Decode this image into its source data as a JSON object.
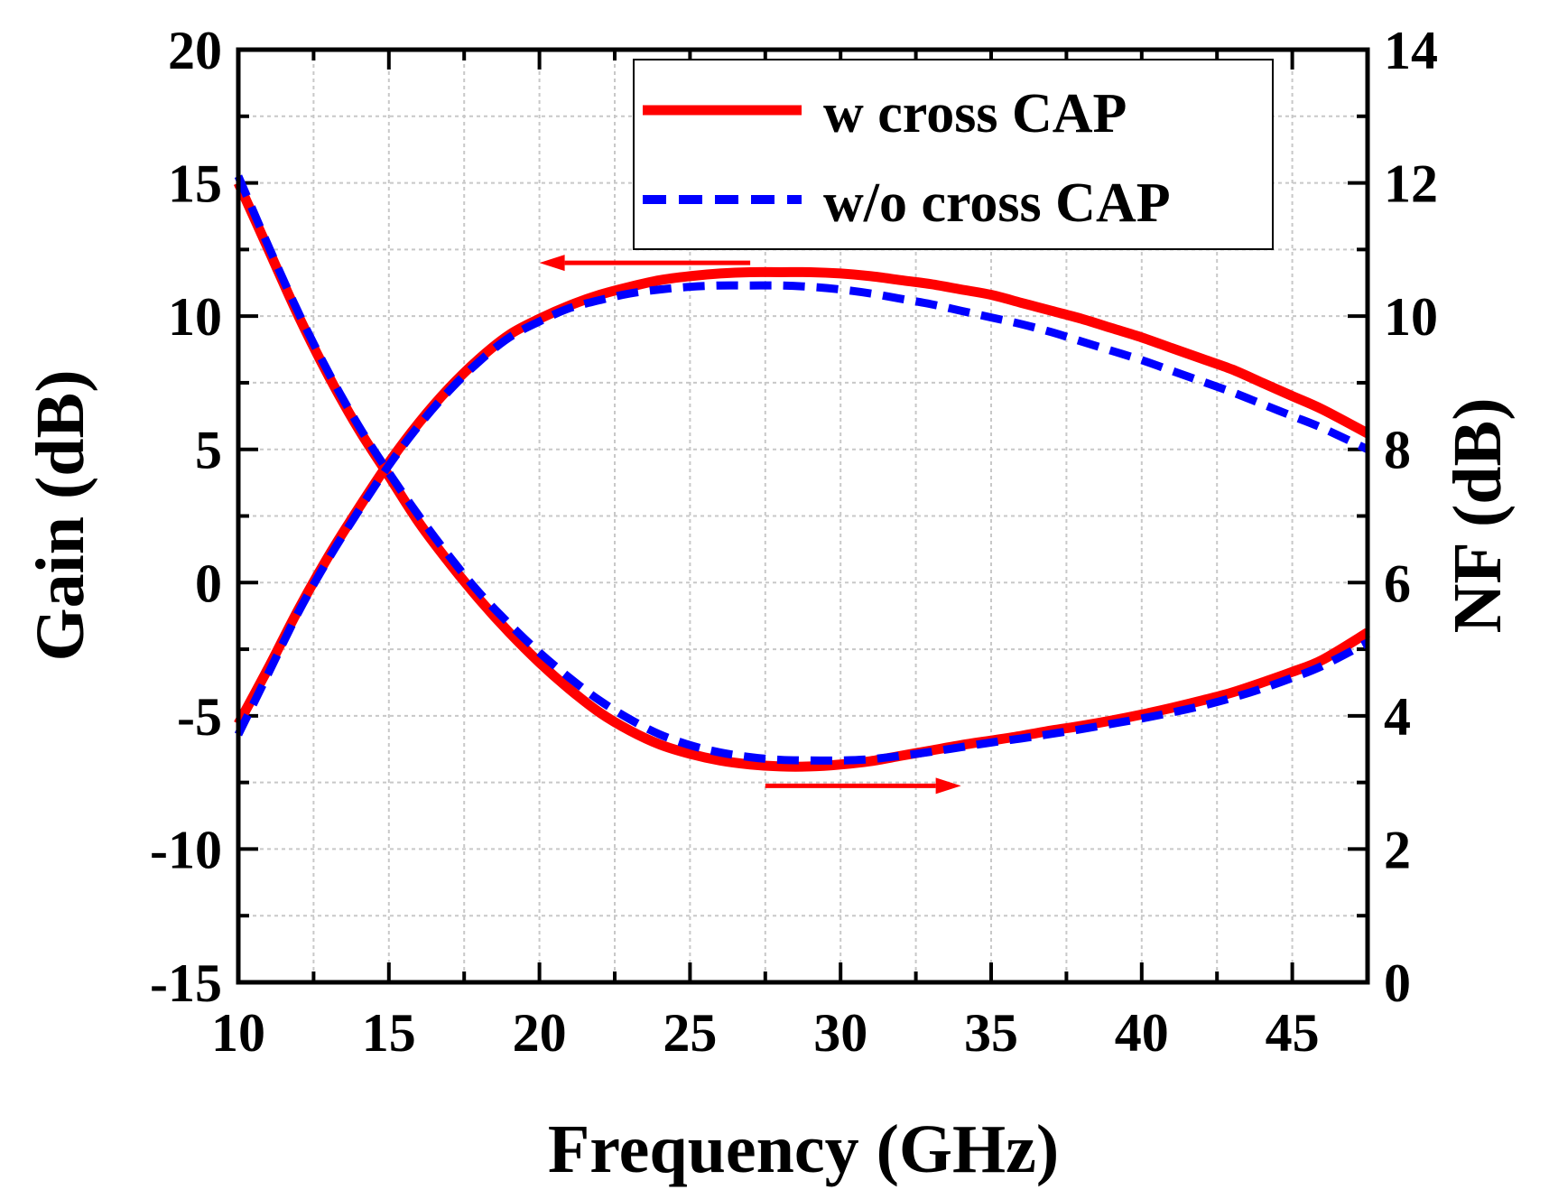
{
  "chart_data": {
    "type": "line",
    "title": "",
    "xlabel": "Frequency (GHz)",
    "ylabel": "Gain (dB)",
    "y2label": "NF (dB)",
    "xlim": [
      10,
      47.5
    ],
    "ylim": [
      -15,
      20
    ],
    "y2lim": [
      0,
      14
    ],
    "xticks": [
      10,
      15,
      20,
      25,
      30,
      35,
      40,
      45
    ],
    "xtick_labels": [
      "10",
      "15",
      "20",
      "25",
      "30",
      "35",
      "40",
      "45"
    ],
    "yticks": [
      -15,
      -10,
      -5,
      0,
      5,
      10,
      15,
      20
    ],
    "ytick_labels": [
      "-15",
      "-10",
      "-5",
      "0",
      "5",
      "10",
      "15",
      "20"
    ],
    "y2ticks": [
      0,
      2,
      4,
      6,
      8,
      10,
      12,
      14
    ],
    "y2tick_labels": [
      "0",
      "2",
      "4",
      "6",
      "8",
      "10",
      "12",
      "14"
    ],
    "grid": true,
    "legend_position": "top-right",
    "legend": [
      "w cross CAP",
      "w/o cross CAP"
    ],
    "colors": {
      "w_cross": "#ff0000",
      "wo_cross": "#0000ff",
      "annotation": "#ff0000"
    },
    "annotations": [
      {
        "type": "arrow",
        "axis": "left",
        "from": [
          27,
          12
        ],
        "to": [
          20,
          12
        ]
      },
      {
        "type": "arrow",
        "axis": "right",
        "from": [
          27.5,
          2.95
        ],
        "to": [
          34,
          2.95
        ]
      }
    ],
    "series": [
      {
        "name": "w cross CAP",
        "metric": "Gain",
        "axis": "left",
        "style": "solid",
        "color": "#ff0000",
        "x": [
          10,
          11,
          12,
          13,
          14,
          15,
          16,
          17,
          18,
          19,
          20,
          21,
          22,
          23,
          24,
          25,
          26,
          27,
          28,
          29,
          30,
          31,
          32,
          33,
          34,
          35,
          36,
          37,
          38,
          39,
          40,
          41,
          42,
          43,
          44,
          45,
          46,
          47.5
        ],
        "values": [
          -5.3,
          -3.2,
          -1.0,
          1.0,
          2.8,
          4.5,
          6.0,
          7.3,
          8.4,
          9.3,
          9.9,
          10.4,
          10.8,
          11.1,
          11.35,
          11.5,
          11.6,
          11.65,
          11.65,
          11.65,
          11.6,
          11.5,
          11.35,
          11.2,
          11.0,
          10.8,
          10.5,
          10.2,
          9.9,
          9.55,
          9.2,
          8.8,
          8.4,
          8.0,
          7.5,
          7.0,
          6.5,
          5.6
        ]
      },
      {
        "name": "w/o cross CAP",
        "metric": "Gain",
        "axis": "left",
        "style": "dashed",
        "color": "#0000ff",
        "x": [
          10,
          11,
          12,
          13,
          14,
          15,
          16,
          17,
          18,
          19,
          20,
          21,
          22,
          23,
          24,
          25,
          26,
          27,
          28,
          29,
          30,
          31,
          32,
          33,
          34,
          35,
          36,
          37,
          38,
          39,
          40,
          41,
          42,
          43,
          44,
          45,
          46,
          47.5
        ],
        "values": [
          -5.7,
          -3.4,
          -1.1,
          0.9,
          2.7,
          4.4,
          5.9,
          7.2,
          8.3,
          9.2,
          9.8,
          10.3,
          10.6,
          10.85,
          11.0,
          11.1,
          11.15,
          11.15,
          11.15,
          11.1,
          11.0,
          10.85,
          10.65,
          10.45,
          10.2,
          9.95,
          9.7,
          9.4,
          9.05,
          8.7,
          8.35,
          7.95,
          7.55,
          7.15,
          6.7,
          6.25,
          5.8,
          5.0
        ]
      },
      {
        "name": "w cross CAP",
        "metric": "NF",
        "axis": "right",
        "style": "solid",
        "color": "#ff0000",
        "x": [
          10,
          11,
          12,
          13,
          14,
          15,
          16,
          17,
          18,
          19,
          20,
          21,
          22,
          23,
          24,
          25,
          26,
          27,
          28,
          29,
          30,
          31,
          32,
          33,
          34,
          35,
          36,
          37,
          38,
          39,
          40,
          41,
          42,
          43,
          44,
          45,
          46,
          47.5
        ],
        "values": [
          12.0,
          11.0,
          10.0,
          9.1,
          8.3,
          7.6,
          6.9,
          6.3,
          5.75,
          5.25,
          4.8,
          4.4,
          4.05,
          3.78,
          3.57,
          3.43,
          3.33,
          3.27,
          3.24,
          3.24,
          3.27,
          3.32,
          3.4,
          3.48,
          3.56,
          3.63,
          3.7,
          3.78,
          3.85,
          3.93,
          4.02,
          4.12,
          4.23,
          4.35,
          4.5,
          4.66,
          4.84,
          5.25
        ]
      },
      {
        "name": "w/o cross CAP",
        "metric": "NF",
        "axis": "right",
        "style": "dashed",
        "color": "#0000ff",
        "x": [
          10,
          11,
          12,
          13,
          14,
          15,
          16,
          17,
          18,
          19,
          20,
          21,
          22,
          23,
          24,
          25,
          26,
          27,
          28,
          29,
          30,
          31,
          32,
          33,
          34,
          35,
          36,
          37,
          38,
          39,
          40,
          41,
          42,
          43,
          44,
          45,
          46,
          47.5
        ],
        "values": [
          12.1,
          11.05,
          10.05,
          9.15,
          8.35,
          7.65,
          7.0,
          6.4,
          5.85,
          5.38,
          4.95,
          4.57,
          4.23,
          3.95,
          3.72,
          3.56,
          3.45,
          3.38,
          3.34,
          3.33,
          3.33,
          3.35,
          3.4,
          3.46,
          3.53,
          3.6,
          3.66,
          3.73,
          3.8,
          3.88,
          3.96,
          4.05,
          4.15,
          4.27,
          4.41,
          4.57,
          4.75,
          5.1
        ]
      }
    ]
  }
}
